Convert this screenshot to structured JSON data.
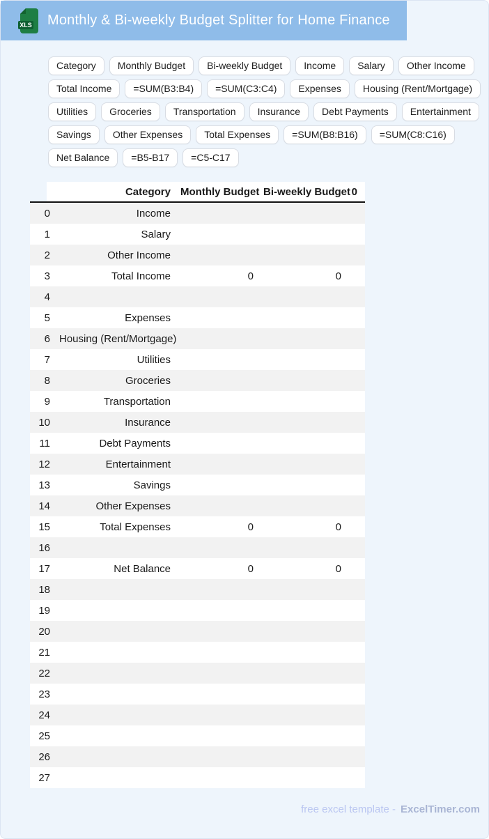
{
  "header": {
    "title": "Monthly & Bi-weekly Budget Splitter for Home Finance",
    "file_badge": "XLS"
  },
  "chip_rows": [
    [
      "Category",
      "Monthly Budget",
      "Bi-weekly Budget",
      "Income",
      "Salary",
      "Other Income"
    ],
    [
      "Total Income",
      "=SUM(B3:B4)",
      "=SUM(C3:C4)",
      "Expenses",
      "Housing (Rent/Mortgage)"
    ],
    [
      "Utilities",
      "Groceries",
      "Transportation",
      "Insurance",
      "Debt Payments",
      "Entertainment"
    ],
    [
      "Savings",
      "Other Expenses",
      "Total Expenses",
      "=SUM(B8:B16)",
      "=SUM(C8:C16)"
    ],
    [
      "Net Balance",
      "=B5-B17",
      "=C5-C17"
    ]
  ],
  "table": {
    "columns": [
      "",
      "Category",
      "Monthly Budget",
      "Bi-weekly Budget",
      "0"
    ],
    "rows": [
      {
        "num": "0",
        "category": "Income",
        "monthly": "",
        "biweekly": "",
        "extra": ""
      },
      {
        "num": "1",
        "category": "Salary",
        "monthly": "",
        "biweekly": "",
        "extra": ""
      },
      {
        "num": "2",
        "category": "Other Income",
        "monthly": "",
        "biweekly": "",
        "extra": ""
      },
      {
        "num": "3",
        "category": "Total Income",
        "monthly": "0",
        "biweekly": "0",
        "extra": ""
      },
      {
        "num": "4",
        "category": "",
        "monthly": "",
        "biweekly": "",
        "extra": ""
      },
      {
        "num": "5",
        "category": "Expenses",
        "monthly": "",
        "biweekly": "",
        "extra": ""
      },
      {
        "num": "6",
        "category": "Housing (Rent/Mortgage)",
        "monthly": "",
        "biweekly": "",
        "extra": ""
      },
      {
        "num": "7",
        "category": "Utilities",
        "monthly": "",
        "biweekly": "",
        "extra": ""
      },
      {
        "num": "8",
        "category": "Groceries",
        "monthly": "",
        "biweekly": "",
        "extra": ""
      },
      {
        "num": "9",
        "category": "Transportation",
        "monthly": "",
        "biweekly": "",
        "extra": ""
      },
      {
        "num": "10",
        "category": "Insurance",
        "monthly": "",
        "biweekly": "",
        "extra": ""
      },
      {
        "num": "11",
        "category": "Debt Payments",
        "monthly": "",
        "biweekly": "",
        "extra": ""
      },
      {
        "num": "12",
        "category": "Entertainment",
        "monthly": "",
        "biweekly": "",
        "extra": ""
      },
      {
        "num": "13",
        "category": "Savings",
        "monthly": "",
        "biweekly": "",
        "extra": ""
      },
      {
        "num": "14",
        "category": "Other Expenses",
        "monthly": "",
        "biweekly": "",
        "extra": ""
      },
      {
        "num": "15",
        "category": "Total Expenses",
        "monthly": "0",
        "biweekly": "0",
        "extra": ""
      },
      {
        "num": "16",
        "category": "",
        "monthly": "",
        "biweekly": "",
        "extra": ""
      },
      {
        "num": "17",
        "category": "Net Balance",
        "monthly": "0",
        "biweekly": "0",
        "extra": ""
      },
      {
        "num": "18",
        "category": "",
        "monthly": "",
        "biweekly": "",
        "extra": ""
      },
      {
        "num": "19",
        "category": "",
        "monthly": "",
        "biweekly": "",
        "extra": ""
      },
      {
        "num": "20",
        "category": "",
        "monthly": "",
        "biweekly": "",
        "extra": ""
      },
      {
        "num": "21",
        "category": "",
        "monthly": "",
        "biweekly": "",
        "extra": ""
      },
      {
        "num": "22",
        "category": "",
        "monthly": "",
        "biweekly": "",
        "extra": ""
      },
      {
        "num": "23",
        "category": "",
        "monthly": "",
        "biweekly": "",
        "extra": ""
      },
      {
        "num": "24",
        "category": "",
        "monthly": "",
        "biweekly": "",
        "extra": ""
      },
      {
        "num": "25",
        "category": "",
        "monthly": "",
        "biweekly": "",
        "extra": ""
      },
      {
        "num": "26",
        "category": "",
        "monthly": "",
        "biweekly": "",
        "extra": ""
      },
      {
        "num": "27",
        "category": "",
        "monthly": "",
        "biweekly": "",
        "extra": ""
      }
    ]
  },
  "footer": {
    "text": "free excel template -",
    "brand": "ExcelTimer.com"
  },
  "colors": {
    "header_bar": "#8fbce9",
    "page_background": "#eef5fc",
    "page_border": "#dbe4f2",
    "row_stripe": "#f2f2f2",
    "icon_green": "#1e7e44",
    "icon_badge_green": "#0e5f31",
    "footer_text": "#bac6f1",
    "footer_brand": "#a9b5d4"
  }
}
